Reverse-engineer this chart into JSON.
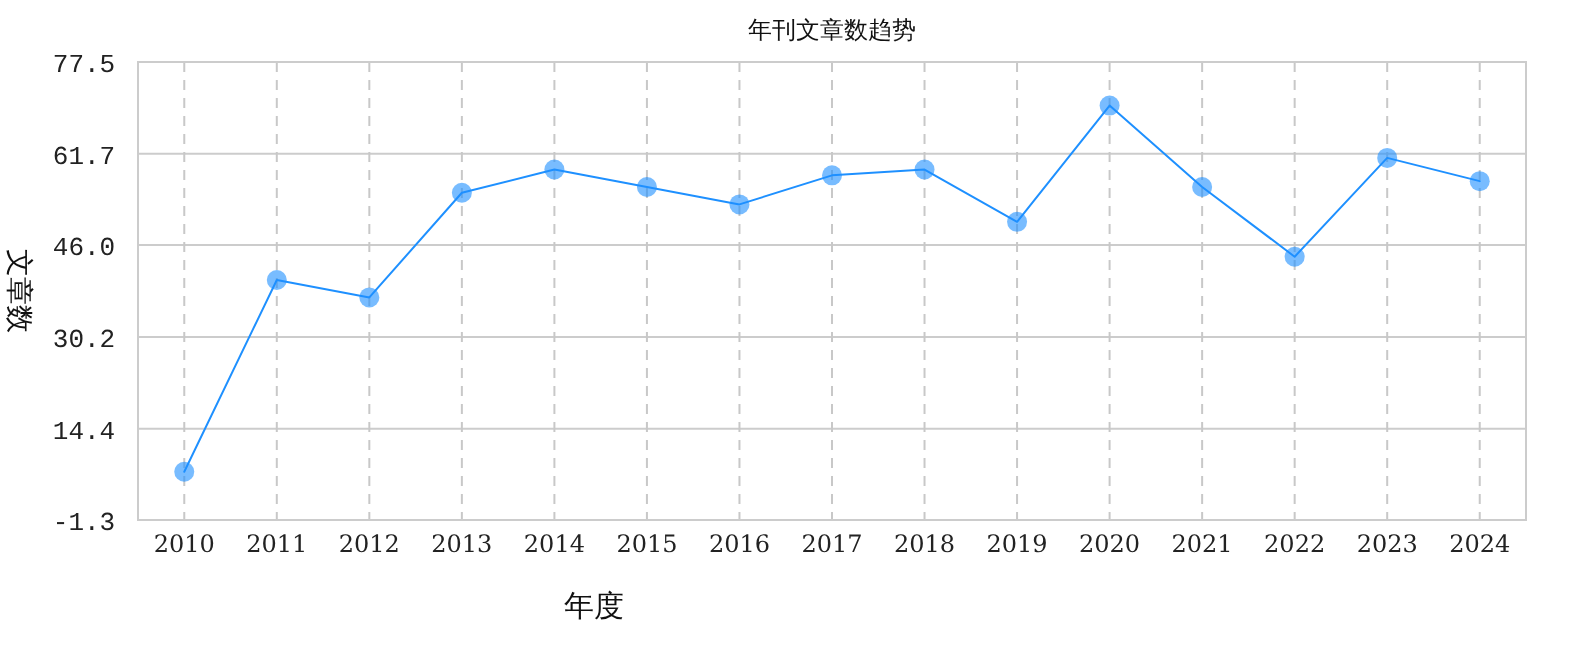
{
  "chart_data": {
    "type": "line",
    "title": "年刊文章数趋势",
    "xlabel": "年度",
    "ylabel": "文章数",
    "categories": [
      "2010",
      "2011",
      "2012",
      "2013",
      "2014",
      "2015",
      "2016",
      "2017",
      "2018",
      "2019",
      "2020",
      "2021",
      "2022",
      "2023",
      "2024"
    ],
    "series": [
      {
        "color": "#1e90ff",
        "values": [
          7,
          40,
          37,
          55,
          59,
          56,
          53,
          58,
          59,
          50,
          70,
          56,
          44,
          61,
          57
        ]
      }
    ],
    "ylim": [
      -1.3,
      77.5
    ],
    "yticks": [
      -1.3,
      14.4,
      30.2,
      {
        "value": 46,
        "label": "46.0"
      },
      61.7,
      77.5
    ],
    "grid": true,
    "marker": "circle",
    "line_style": "solid"
  }
}
